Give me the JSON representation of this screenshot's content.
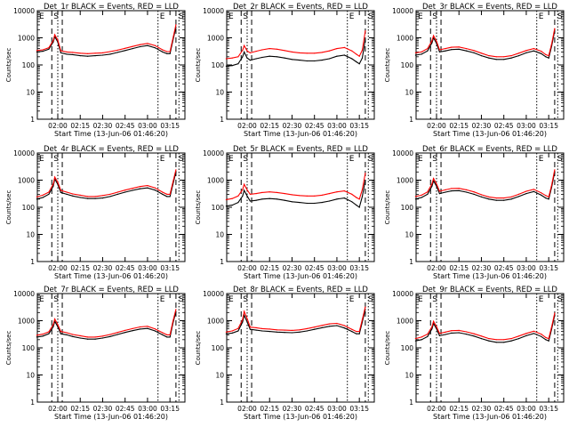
{
  "figure": {
    "panel_titles": [
      "Det_1r BLACK = Events, RED = LLD",
      "Det_2r BLACK = Events, RED = LLD",
      "Det_3r BLACK = Events, RED = LLD",
      "Det_4r BLACK = Events, RED = LLD",
      "Det_5r BLACK = Events, RED = LLD",
      "Det_6r BLACK = Events, RED = LLD",
      "Det_7r BLACK = Events, RED = LLD",
      "Det_8r BLACK = Events, RED = LLD",
      "Det_9r BLACK = Events, RED = LLD"
    ],
    "xlabel": "Start Time (13-Jun-06 01:46:20)",
    "ylabel": "Counts/sec",
    "x_tick_labels": [
      "02:00",
      "02:15",
      "02:30",
      "02:45",
      "03:00",
      "03:15"
    ],
    "y_tick_labels": [
      "1",
      "10",
      "100",
      "1000",
      "10000"
    ],
    "markers": [
      "E",
      "S"
    ]
  },
  "chart_data": [
    {
      "type": "line",
      "title": "Det_1r BLACK = Events, RED = LLD",
      "xlabel": "Start Time (13-Jun-06 01:46:20)",
      "ylabel": "Counts/sec",
      "y_scale": "log",
      "ylim": [
        1,
        10000
      ],
      "xlim": [
        "01:46:20",
        "03:25"
      ],
      "x": [
        "01:46",
        "01:50",
        "01:54",
        "01:57",
        "01:58",
        "02:00",
        "02:02",
        "02:06",
        "02:10",
        "02:15",
        "02:20",
        "02:25",
        "02:30",
        "02:35",
        "02:40",
        "02:45",
        "02:50",
        "02:55",
        "03:00",
        "03:05",
        "03:10",
        "03:13",
        "03:15",
        "03:17",
        "03:19"
      ],
      "series": [
        {
          "name": "BLACK = Events",
          "color": "#000000",
          "values": [
            300,
            320,
            380,
            700,
            1100,
            700,
            280,
            250,
            240,
            220,
            210,
            220,
            230,
            250,
            290,
            340,
            400,
            470,
            520,
            430,
            300,
            260,
            260,
            800,
            2500
          ]
        },
        {
          "name": "RED = LLD",
          "color": "#ff0000",
          "values": [
            340,
            360,
            430,
            800,
            1300,
            820,
            330,
            300,
            290,
            270,
            260,
            270,
            280,
            310,
            350,
            410,
            480,
            560,
            620,
            520,
            360,
            310,
            310,
            950,
            3000
          ]
        }
      ],
      "vertical_markers": {
        "dashed": [
          "01:56",
          "02:03",
          "03:19"
        ],
        "dotted": [
          "02:00",
          "03:07",
          "03:21"
        ]
      }
    },
    {
      "type": "line",
      "title": "Det_2r BLACK = Events, RED = LLD",
      "xlabel": "Start Time (13-Jun-06 01:46:20)",
      "ylabel": "Counts/sec",
      "y_scale": "log",
      "ylim": [
        1,
        10000
      ],
      "xlim": [
        "01:46:20",
        "03:25"
      ],
      "x": [
        "01:46",
        "01:50",
        "01:54",
        "01:57",
        "01:58",
        "02:00",
        "02:02",
        "02:06",
        "02:10",
        "02:15",
        "02:20",
        "02:25",
        "02:30",
        "02:35",
        "02:40",
        "02:45",
        "02:50",
        "02:55",
        "03:00",
        "03:05",
        "03:10",
        "03:13",
        "03:15",
        "03:17",
        "03:19"
      ],
      "series": [
        {
          "name": "BLACK = Events",
          "color": "#000000",
          "values": [
            90,
            95,
            110,
            200,
            300,
            180,
            150,
            170,
            190,
            210,
            200,
            180,
            160,
            150,
            140,
            140,
            150,
            170,
            210,
            230,
            170,
            130,
            110,
            180,
            900
          ]
        },
        {
          "name": "RED = LLD",
          "color": "#ff0000",
          "values": [
            170,
            180,
            200,
            350,
            520,
            330,
            280,
            320,
            360,
            400,
            380,
            340,
            300,
            280,
            270,
            270,
            290,
            330,
            400,
            440,
            330,
            250,
            210,
            350,
            1800
          ]
        }
      ],
      "vertical_markers": {
        "dashed": [
          "01:56",
          "02:03",
          "03:19"
        ],
        "dotted": [
          "02:00",
          "03:07",
          "03:21"
        ]
      }
    },
    {
      "type": "line",
      "title": "Det_3r BLACK = Events, RED = LLD",
      "xlabel": "Start Time (13-Jun-06 01:46:20)",
      "ylabel": "Counts/sec",
      "y_scale": "log",
      "ylim": [
        1,
        10000
      ],
      "xlim": [
        "01:46:20",
        "03:25"
      ],
      "x": [
        "01:46",
        "01:50",
        "01:54",
        "01:57",
        "01:58",
        "02:00",
        "02:02",
        "02:06",
        "02:10",
        "02:15",
        "02:20",
        "02:25",
        "02:30",
        "02:35",
        "02:40",
        "02:45",
        "02:50",
        "02:55",
        "03:00",
        "03:05",
        "03:10",
        "03:13",
        "03:15",
        "03:17",
        "03:19"
      ],
      "series": [
        {
          "name": "BLACK = Events",
          "color": "#000000",
          "values": [
            230,
            250,
            330,
            650,
            1000,
            620,
            300,
            330,
            370,
            380,
            330,
            280,
            220,
            180,
            160,
            160,
            180,
            220,
            280,
            330,
            260,
            200,
            180,
            500,
            1800
          ]
        },
        {
          "name": "RED = LLD",
          "color": "#ff0000",
          "values": [
            280,
            300,
            400,
            780,
            1200,
            750,
            360,
            400,
            450,
            460,
            400,
            340,
            270,
            220,
            200,
            200,
            220,
            270,
            340,
            400,
            320,
            240,
            220,
            600,
            2200
          ]
        }
      ],
      "vertical_markers": {
        "dashed": [
          "01:56",
          "02:03",
          "03:19"
        ],
        "dotted": [
          "02:00",
          "03:07",
          "03:21"
        ]
      }
    },
    {
      "type": "line",
      "title": "Det_4r BLACK = Events, RED = LLD",
      "xlabel": "Start Time (13-Jun-06 01:46:20)",
      "ylabel": "Counts/sec",
      "y_scale": "log",
      "ylim": [
        1,
        10000
      ],
      "xlim": [
        "01:46:20",
        "03:25"
      ],
      "x": [
        "01:46",
        "01:50",
        "01:54",
        "01:57",
        "01:58",
        "02:00",
        "02:02",
        "02:06",
        "02:10",
        "02:15",
        "02:20",
        "02:25",
        "02:30",
        "02:35",
        "02:40",
        "02:45",
        "02:50",
        "02:55",
        "03:00",
        "03:05",
        "03:10",
        "03:13",
        "03:15",
        "03:17",
        "03:19"
      ],
      "series": [
        {
          "name": "BLACK = Events",
          "color": "#000000",
          "values": [
            200,
            230,
            300,
            600,
            1100,
            700,
            350,
            300,
            260,
            230,
            210,
            210,
            220,
            250,
            300,
            360,
            420,
            480,
            520,
            430,
            300,
            250,
            250,
            700,
            2000
          ]
        },
        {
          "name": "RED = LLD",
          "color": "#ff0000",
          "values": [
            240,
            280,
            360,
            720,
            1300,
            840,
            420,
            360,
            310,
            280,
            250,
            250,
            270,
            300,
            360,
            430,
            500,
            580,
            630,
            520,
            360,
            300,
            300,
            850,
            2400
          ]
        }
      ],
      "vertical_markers": {
        "dashed": [
          "01:56",
          "02:03",
          "03:19"
        ],
        "dotted": [
          "02:00",
          "03:07",
          "03:21"
        ]
      }
    },
    {
      "type": "line",
      "title": "Det_5r BLACK = Events, RED = LLD",
      "xlabel": "Start Time (13-Jun-06 01:46:20)",
      "ylabel": "Counts/sec",
      "y_scale": "log",
      "ylim": [
        1,
        10000
      ],
      "xlim": [
        "01:46:20",
        "03:25"
      ],
      "x": [
        "01:46",
        "01:50",
        "01:54",
        "01:57",
        "01:58",
        "02:00",
        "02:02",
        "02:06",
        "02:10",
        "02:15",
        "02:20",
        "02:25",
        "02:30",
        "02:35",
        "02:40",
        "02:45",
        "02:50",
        "02:55",
        "03:00",
        "03:05",
        "03:10",
        "03:13",
        "03:15",
        "03:17",
        "03:19"
      ],
      "series": [
        {
          "name": "BLACK = Events",
          "color": "#000000",
          "values": [
            110,
            120,
            150,
            260,
            420,
            260,
            170,
            180,
            200,
            210,
            200,
            180,
            160,
            150,
            140,
            140,
            150,
            170,
            200,
            220,
            160,
            120,
            100,
            250,
            1000
          ]
        },
        {
          "name": "RED = LLD",
          "color": "#ff0000",
          "values": [
            190,
            210,
            260,
            450,
            700,
            440,
            300,
            320,
            350,
            370,
            350,
            320,
            290,
            270,
            260,
            260,
            280,
            320,
            370,
            400,
            300,
            230,
            200,
            450,
            1800
          ]
        }
      ],
      "vertical_markers": {
        "dashed": [
          "01:56",
          "02:03",
          "03:19"
        ],
        "dotted": [
          "02:00",
          "03:07",
          "03:21"
        ]
      }
    },
    {
      "type": "line",
      "title": "Det_6r BLACK = Events, RED = LLD",
      "xlabel": "Start Time (13-Jun-06 01:46:20)",
      "ylabel": "Counts/sec",
      "y_scale": "log",
      "ylim": [
        1,
        10000
      ],
      "xlim": [
        "01:46:20",
        "03:25"
      ],
      "x": [
        "01:46",
        "01:50",
        "01:54",
        "01:57",
        "01:58",
        "02:00",
        "02:02",
        "02:06",
        "02:10",
        "02:15",
        "02:20",
        "02:25",
        "02:30",
        "02:35",
        "02:40",
        "02:45",
        "02:50",
        "02:55",
        "03:00",
        "03:05",
        "03:10",
        "03:13",
        "03:15",
        "03:17",
        "03:19"
      ],
      "series": [
        {
          "name": "BLACK = Events",
          "color": "#000000",
          "values": [
            200,
            230,
            300,
            600,
            950,
            600,
            320,
            360,
            400,
            410,
            360,
            300,
            240,
            200,
            180,
            180,
            200,
            250,
            320,
            380,
            280,
            220,
            200,
            550,
            2000
          ]
        },
        {
          "name": "RED = LLD",
          "color": "#ff0000",
          "values": [
            250,
            280,
            370,
            730,
            1150,
            730,
            390,
            440,
            490,
            500,
            440,
            370,
            290,
            240,
            220,
            220,
            240,
            300,
            390,
            460,
            340,
            270,
            240,
            660,
            2400
          ]
        }
      ],
      "vertical_markers": {
        "dashed": [
          "01:56",
          "02:03",
          "03:19"
        ],
        "dotted": [
          "02:00",
          "03:07",
          "03:21"
        ]
      }
    },
    {
      "type": "line",
      "title": "Det_7r BLACK = Events, RED = LLD",
      "xlabel": "Start Time (13-Jun-06 01:46:20)",
      "ylabel": "Counts/sec",
      "y_scale": "log",
      "ylim": [
        1,
        10000
      ],
      "xlim": [
        "01:46:20",
        "03:25"
      ],
      "x": [
        "01:46",
        "01:50",
        "01:54",
        "01:57",
        "01:58",
        "02:00",
        "02:02",
        "02:06",
        "02:10",
        "02:15",
        "02:20",
        "02:25",
        "02:30",
        "02:35",
        "02:40",
        "02:45",
        "02:50",
        "02:55",
        "03:00",
        "03:05",
        "03:10",
        "03:13",
        "03:15",
        "03:17",
        "03:19"
      ],
      "series": [
        {
          "name": "BLACK = Events",
          "color": "#000000",
          "values": [
            250,
            270,
            330,
            600,
            950,
            600,
            330,
            300,
            260,
            230,
            210,
            210,
            230,
            260,
            310,
            370,
            430,
            490,
            520,
            420,
            300,
            250,
            250,
            800,
            2200
          ]
        },
        {
          "name": "RED = LLD",
          "color": "#ff0000",
          "values": [
            290,
            320,
            390,
            720,
            1150,
            720,
            400,
            360,
            310,
            280,
            250,
            250,
            270,
            310,
            370,
            440,
            510,
            590,
            620,
            500,
            360,
            300,
            300,
            950,
            2600
          ]
        }
      ],
      "vertical_markers": {
        "dashed": [
          "01:56",
          "02:03",
          "03:19"
        ],
        "dotted": [
          "02:00",
          "03:07",
          "03:21"
        ]
      }
    },
    {
      "type": "line",
      "title": "Det_8r BLACK = Events, RED = LLD",
      "xlabel": "Start Time (13-Jun-06 01:46:20)",
      "ylabel": "Counts/sec",
      "y_scale": "log",
      "ylim": [
        1,
        10000
      ],
      "xlim": [
        "01:46:20",
        "03:25"
      ],
      "x": [
        "01:46",
        "01:50",
        "01:54",
        "01:57",
        "01:58",
        "02:00",
        "02:02",
        "02:06",
        "02:10",
        "02:15",
        "02:20",
        "02:25",
        "02:30",
        "02:35",
        "02:40",
        "02:45",
        "02:50",
        "02:55",
        "03:00",
        "03:05",
        "03:10",
        "03:13",
        "03:15",
        "03:17",
        "03:19"
      ],
      "series": [
        {
          "name": "BLACK = Events",
          "color": "#000000",
          "values": [
            330,
            350,
            420,
            900,
            1600,
            900,
            480,
            450,
            420,
            400,
            380,
            370,
            360,
            380,
            420,
            480,
            550,
            620,
            660,
            540,
            400,
            330,
            330,
            900,
            2600
          ]
        },
        {
          "name": "RED = LLD",
          "color": "#ff0000",
          "values": [
            380,
            420,
            520,
            1100,
            2200,
            1200,
            580,
            550,
            510,
            490,
            460,
            450,
            440,
            460,
            510,
            580,
            670,
            760,
            800,
            660,
            480,
            400,
            400,
            1100,
            3200
          ]
        }
      ],
      "vertical_markers": {
        "dashed": [
          "01:56",
          "02:03",
          "03:19"
        ],
        "dotted": [
          "02:00",
          "03:07",
          "03:21"
        ]
      }
    },
    {
      "type": "line",
      "title": "Det_9r BLACK = Events, RED = LLD",
      "xlabel": "Start Time (13-Jun-06 01:46:20)",
      "ylabel": "Counts/sec",
      "y_scale": "log",
      "ylim": [
        1,
        10000
      ],
      "xlim": [
        "01:46:20",
        "03:25"
      ],
      "x": [
        "01:46",
        "01:50",
        "01:54",
        "01:57",
        "01:58",
        "02:00",
        "02:02",
        "02:06",
        "02:10",
        "02:15",
        "02:20",
        "02:25",
        "02:30",
        "02:35",
        "02:40",
        "02:45",
        "02:50",
        "02:55",
        "03:00",
        "03:05",
        "03:10",
        "03:13",
        "03:15",
        "03:17",
        "03:19"
      ],
      "series": [
        {
          "name": "BLACK = Events",
          "color": "#000000",
          "values": [
            180,
            200,
            260,
            500,
            800,
            500,
            280,
            310,
            350,
            360,
            320,
            270,
            220,
            180,
            160,
            160,
            180,
            220,
            280,
            340,
            260,
            200,
            180,
            500,
            1600
          ]
        },
        {
          "name": "RED = LLD",
          "color": "#ff0000",
          "values": [
            220,
            250,
            320,
            600,
            950,
            600,
            340,
            380,
            430,
            440,
            390,
            330,
            270,
            220,
            200,
            200,
            220,
            270,
            340,
            410,
            320,
            240,
            220,
            600,
            1900
          ]
        }
      ],
      "vertical_markers": {
        "dashed": [
          "01:56",
          "02:03",
          "03:19"
        ],
        "dotted": [
          "02:00",
          "03:07",
          "03:21"
        ]
      }
    }
  ]
}
